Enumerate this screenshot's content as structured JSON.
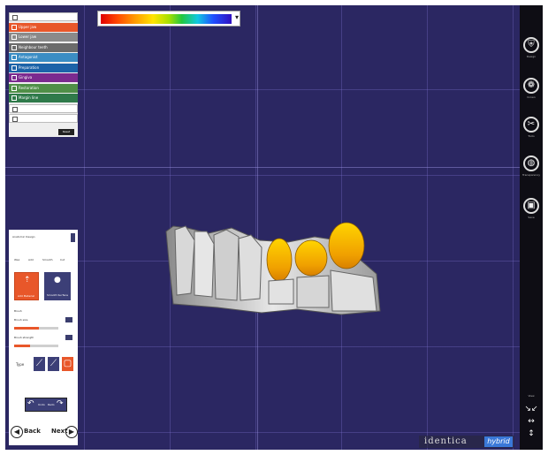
{
  "scale": {
    "arrow": "▾"
  },
  "layers": {
    "items": [
      {
        "label": "",
        "color": "#ffffff",
        "light": true
      },
      {
        "label": "Upper jaw",
        "color": "#e8572a"
      },
      {
        "label": "Lower jaw",
        "color": "#8a8a8a"
      },
      {
        "label": "Neighbour teeth",
        "color": "#6b6b6b"
      },
      {
        "label": "Antagonist",
        "color": "#3b8dc4"
      },
      {
        "label": "Preparation",
        "color": "#1d63a8"
      },
      {
        "label": "Gingiva",
        "color": "#7b2a8f"
      },
      {
        "label": "Restoration",
        "color": "#4f8f47"
      },
      {
        "label": "Margin line",
        "color": "#2f7a4a"
      },
      {
        "label": "",
        "color": "#ffffff",
        "light": true
      },
      {
        "label": "",
        "color": "#ffffff",
        "light": true
      }
    ],
    "action": "Reset"
  },
  "tools": {
    "header": "Anatomic Design",
    "tabs": [
      "Wax",
      "Add",
      "Smooth",
      "Cut"
    ],
    "btn1": "Add Material",
    "btn2": "Smooth Surface",
    "section": "Brush",
    "slider1_label": "Brush size",
    "slider1_value": 0.55,
    "slider2_label": "Brush strength",
    "slider2_value": 0.35,
    "type_label": "Type",
    "undo_labels": [
      "Undo",
      "Redo"
    ],
    "back": "Back",
    "next": "Next"
  },
  "rightbar": {
    "items": [
      {
        "icon": "tooth-design-icon",
        "glyph": "⛨",
        "label": "Design"
      },
      {
        "icon": "crown-icon",
        "glyph": "❁",
        "label": "Crown"
      },
      {
        "icon": "tools-icon",
        "glyph": "✂",
        "label": "Tools"
      },
      {
        "icon": "transparency-icon",
        "glyph": "◍",
        "label": "Transparency"
      },
      {
        "icon": "save-icon",
        "glyph": "▣",
        "label": "Save"
      }
    ],
    "nav_label": "View"
  },
  "logo": {
    "part1": "identica",
    "part2": "hybrid"
  }
}
